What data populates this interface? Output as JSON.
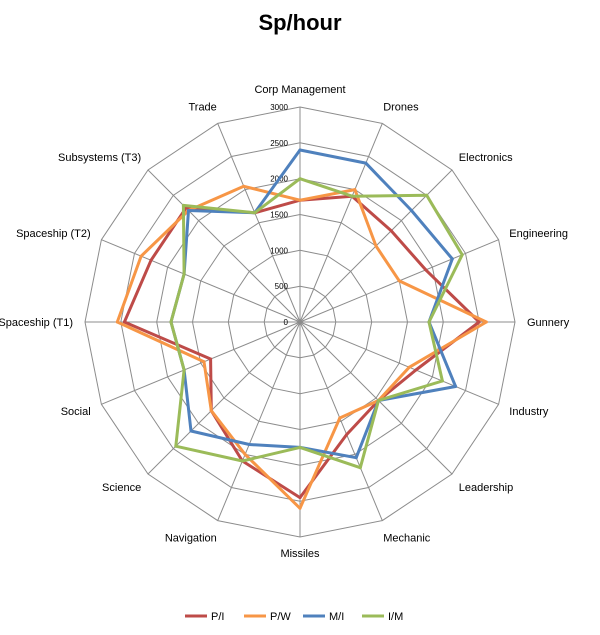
{
  "chart_data": {
    "type": "radar",
    "title": "Sp/hour",
    "categories": [
      "Corp Management",
      "Drones",
      "Electronics",
      "Engineering",
      "Gunnery",
      "Industry",
      "Leadership",
      "Mechanic",
      "Missiles",
      "Navigation",
      "Science",
      "Social",
      "Spaceship (T1)",
      "Spaceship (T2)",
      "Subsystems (T3)",
      "Trade"
    ],
    "rlim": [
      0,
      3000
    ],
    "ticks": [
      0,
      500,
      1000,
      1500,
      2000,
      2500,
      3000
    ],
    "tick_labels": [
      "0",
      "500",
      "1000",
      "1500",
      "2000",
      "2500",
      "3000"
    ],
    "grid": true,
    "legend_position": "bottom",
    "series": [
      {
        "name": "P/I",
        "color": "#be4b48",
        "values": [
          1700,
          1900,
          1800,
          1900,
          2500,
          1750,
          1550,
          1700,
          2450,
          2100,
          1750,
          1350,
          2450,
          2250,
          2250,
          1650
        ]
      },
      {
        "name": "P/W",
        "color": "#f79646",
        "values": [
          1700,
          2000,
          1500,
          1500,
          2600,
          1650,
          1550,
          1450,
          2600,
          2000,
          1750,
          1450,
          2550,
          2400,
          2200,
          2050
        ]
      },
      {
        "name": "M/I",
        "color": "#4f81bd",
        "values": [
          2400,
          2400,
          2200,
          2300,
          1800,
          2350,
          1550,
          2050,
          1750,
          1850,
          2150,
          1750,
          1800,
          1750,
          2200,
          1650
        ]
      },
      {
        "name": "I/M",
        "color": "#9bbb59",
        "values": [
          2000,
          1900,
          2500,
          2450,
          1800,
          2150,
          1550,
          2200,
          1750,
          2100,
          2450,
          1750,
          1800,
          1750,
          2300,
          1650
        ]
      }
    ]
  }
}
